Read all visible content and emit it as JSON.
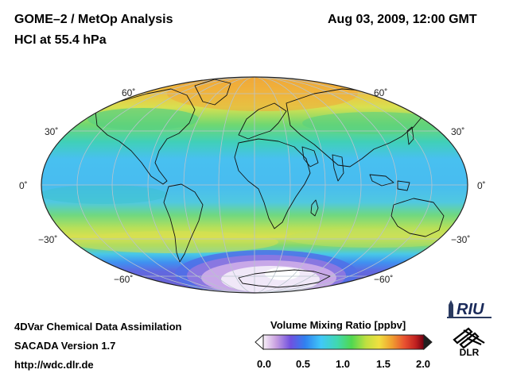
{
  "header": {
    "title_line1": "GOME–2 / MetOp Analysis",
    "title_line2": "HCl at 55.4 hPa",
    "datetime": "Aug 03, 2009, 12:00 GMT"
  },
  "map": {
    "projection": "Mollweide",
    "latitude_labels": {
      "n60": "60˚",
      "n30": "30˚",
      "eq": "0˚",
      "s30": "−30˚",
      "s60": "−60˚"
    }
  },
  "colorbar": {
    "label": "Volume Mixing Ratio [ppbv]",
    "ticks": [
      "0.0",
      "0.5",
      "1.0",
      "1.5",
      "2.0"
    ],
    "range": [
      0.0,
      2.0
    ]
  },
  "footer": {
    "line1": "4DVar Chemical Data Assimilation",
    "line2": "SACADA Version 1.7",
    "line3": "http://wdc.dlr.de"
  },
  "logos": {
    "riu_text": "RIU",
    "dlr_text": "DLR"
  },
  "colors": {
    "ocean_bg": "#4ec8f0",
    "band_green": "#5ad878",
    "band_yellow": "#d8e050",
    "band_orange": "#f0b040",
    "antarctic_purple": "#c8a8e8",
    "antarctic_core": "#f0e8f8"
  }
}
